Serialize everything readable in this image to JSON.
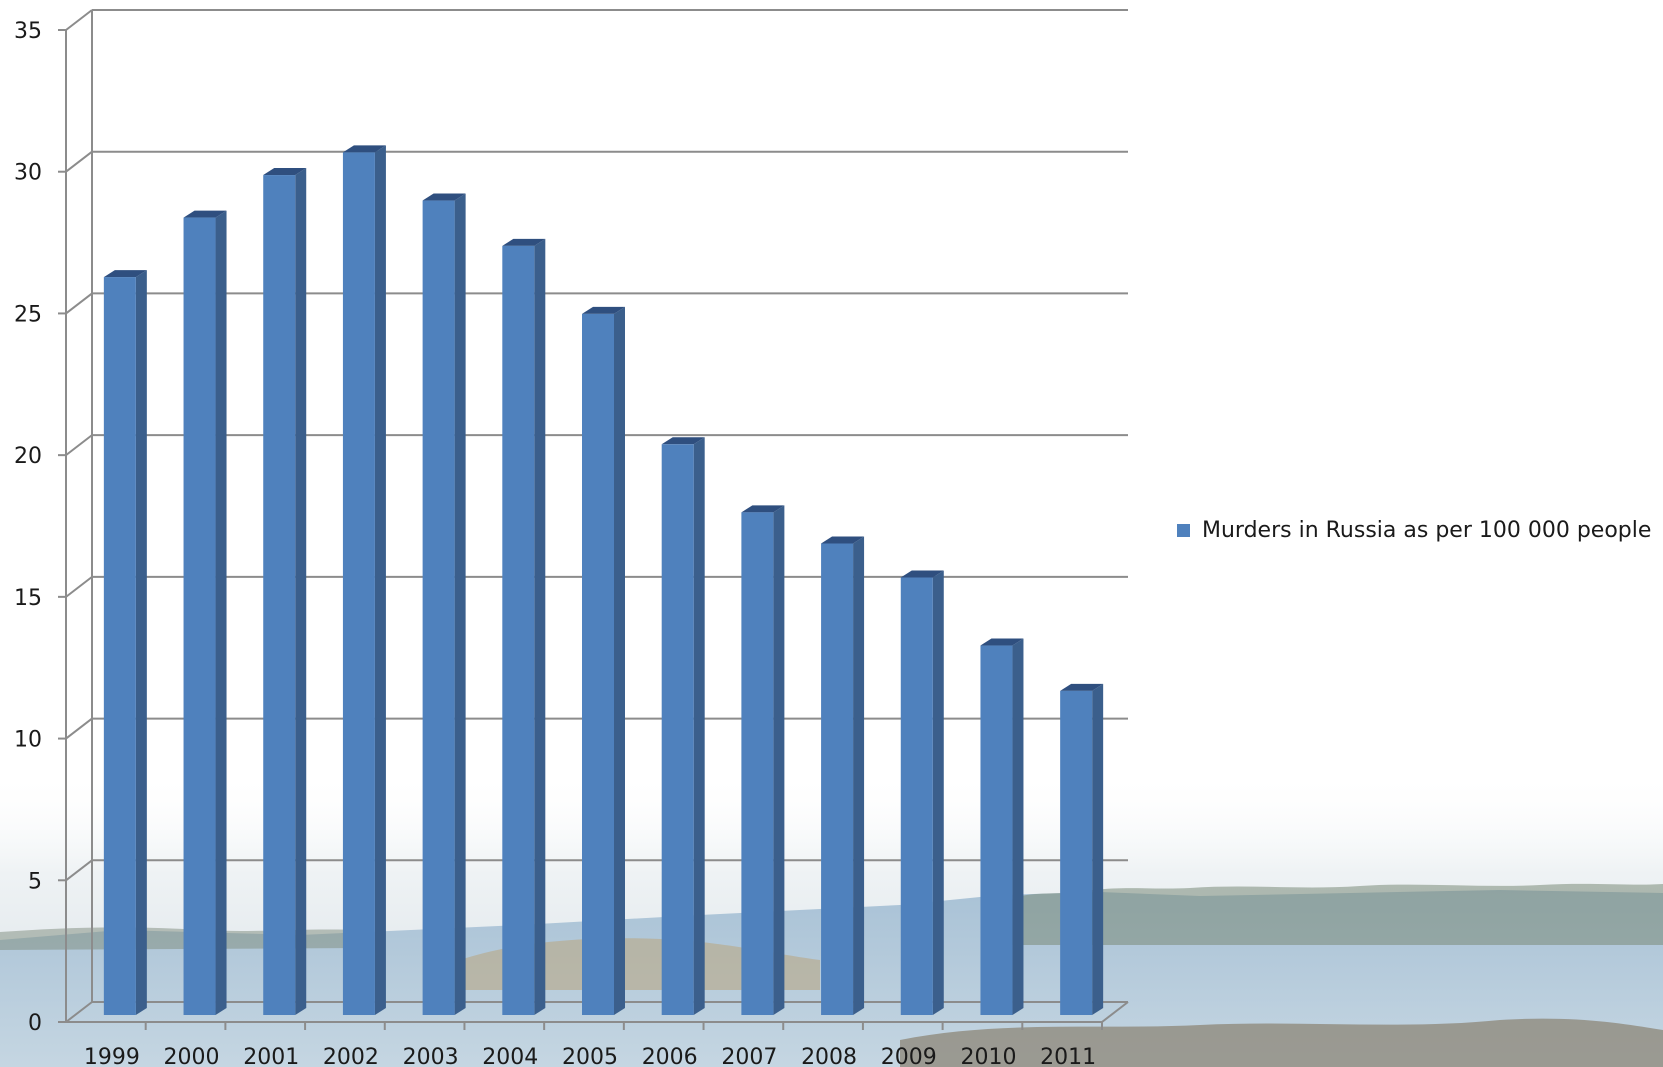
{
  "chart_data": {
    "type": "bar",
    "style": "3d-column",
    "categories": [
      "1999",
      "2000",
      "2001",
      "2002",
      "2003",
      "2004",
      "2005",
      "2006",
      "2007",
      "2008",
      "2009",
      "2010",
      "2011"
    ],
    "series": [
      {
        "name": "Murders in Russia as per 100 000 people",
        "values": [
          26.0,
          28.1,
          29.6,
          30.4,
          28.7,
          27.1,
          24.7,
          20.1,
          17.7,
          16.6,
          15.4,
          13.0,
          11.4
        ],
        "color": "#4f81bd"
      }
    ],
    "y_ticks": [
      "0",
      "5",
      "10",
      "15",
      "20",
      "25",
      "30",
      "35"
    ],
    "ylim": [
      0,
      35
    ],
    "grid": true,
    "legend_position": "right",
    "background": "photo of lake shoreline behind lower part of chart"
  }
}
